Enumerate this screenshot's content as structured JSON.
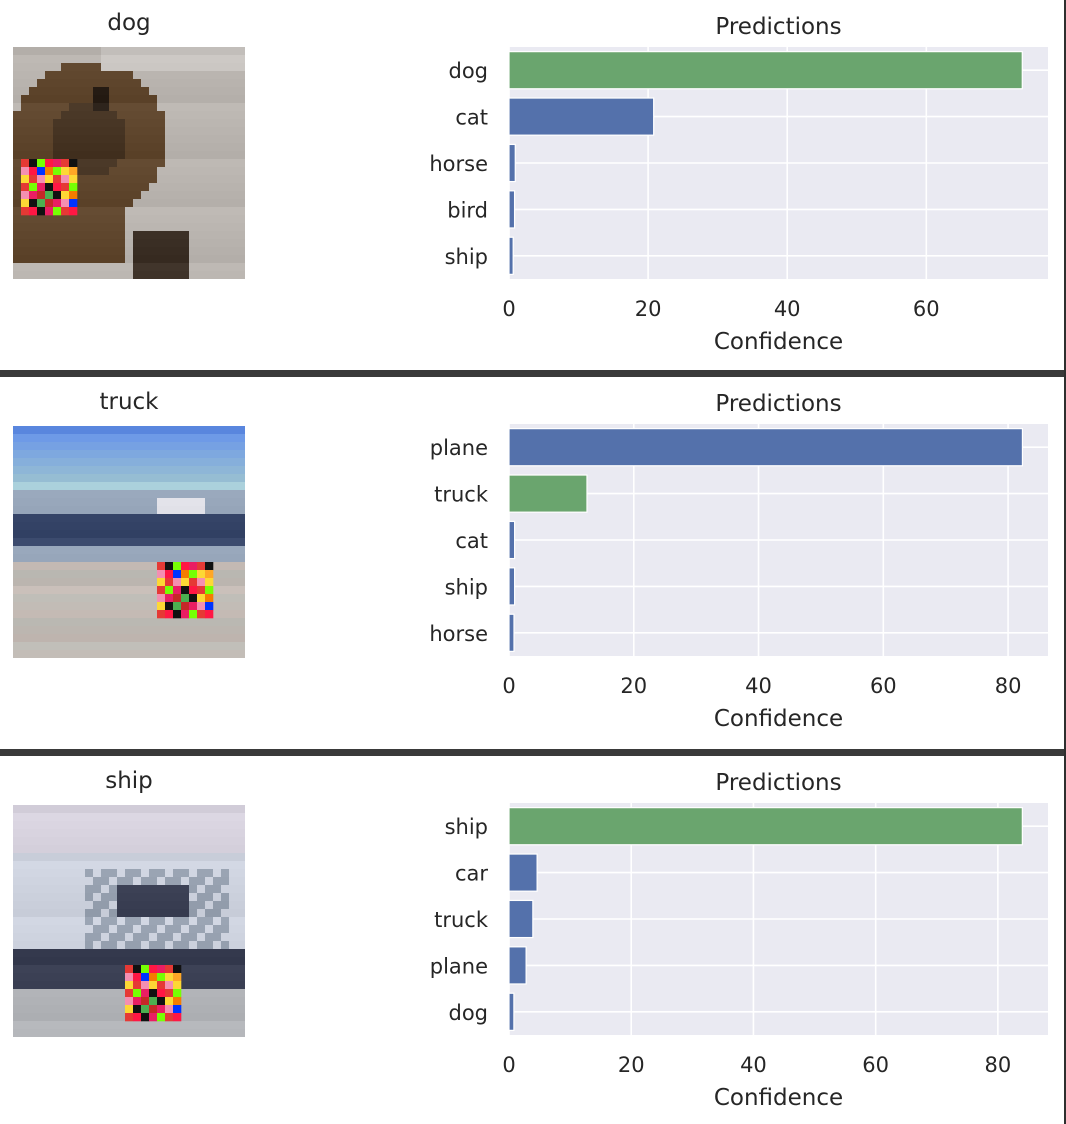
{
  "panels": [
    {
      "image_label": "dog",
      "image_scene": "dog",
      "chart_data": {
        "type": "bar",
        "orientation": "horizontal",
        "title": "Predictions",
        "xlabel": "Confidence",
        "categories": [
          "dog",
          "cat",
          "horse",
          "bird",
          "ship"
        ],
        "values": [
          73.8,
          20.8,
          0.9,
          0.8,
          0.6
        ],
        "highlight_category": "dog",
        "xlim": [
          0,
          77.5
        ],
        "xticks": [
          0,
          20,
          40,
          60
        ],
        "grid": true
      }
    },
    {
      "image_label": "truck",
      "image_scene": "truck",
      "chart_data": {
        "type": "bar",
        "orientation": "horizontal",
        "title": "Predictions",
        "xlabel": "Confidence",
        "categories": [
          "plane",
          "truck",
          "cat",
          "ship",
          "horse"
        ],
        "values": [
          82.3,
          12.5,
          0.9,
          0.9,
          0.8
        ],
        "highlight_category": "truck",
        "xlim": [
          0,
          86.4
        ],
        "xticks": [
          0,
          20,
          40,
          60,
          80
        ],
        "grid": true
      }
    },
    {
      "image_label": "ship",
      "image_scene": "ship",
      "chart_data": {
        "type": "bar",
        "orientation": "horizontal",
        "title": "Predictions",
        "xlabel": "Confidence",
        "categories": [
          "ship",
          "car",
          "truck",
          "plane",
          "dog"
        ],
        "values": [
          84.0,
          4.6,
          3.9,
          2.8,
          0.8
        ],
        "highlight_category": "ship",
        "xlim": [
          0,
          88.2
        ],
        "xticks": [
          0,
          20,
          40,
          60,
          80
        ],
        "grid": true
      }
    }
  ],
  "colors": {
    "bar_default": "#5471ab",
    "bar_highlight": "#6aa56e",
    "axes_background": "#eaeaf2",
    "grid": "#ffffff",
    "separator": "#3a3a3a"
  }
}
